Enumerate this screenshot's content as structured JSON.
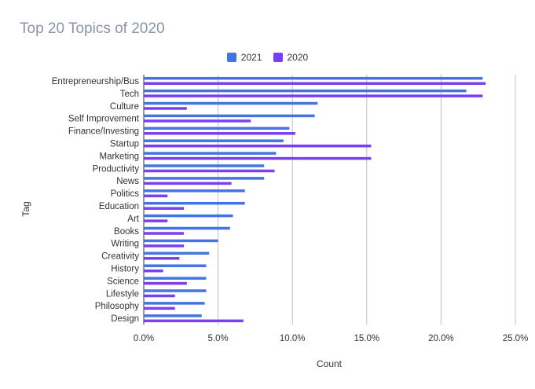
{
  "chart_data": {
    "type": "bar",
    "orientation": "horizontal",
    "title": "Top 20 Topics of 2020",
    "xlabel": "Count",
    "ylabel": "Tag",
    "xlim": [
      0,
      0.26
    ],
    "x_ticks": [
      "0.0%",
      "5.0%",
      "10.0%",
      "15.0%",
      "20.0%",
      "25.0%"
    ],
    "x_tick_values": [
      0,
      0.05,
      0.1,
      0.15,
      0.2,
      0.25
    ],
    "grid": true,
    "legend_position": "top",
    "categories": [
      "Entrepreneurship/Bus",
      "Tech",
      "Culture",
      "Self Improvement",
      "Finance/Investing",
      "Startup",
      "Marketing",
      "Productivity",
      "News",
      "Politics",
      "Education",
      "Art",
      "Books",
      "Writing",
      "Creativity",
      "History",
      "Science",
      "Lifestyle",
      "Philosophy",
      "Design"
    ],
    "series": [
      {
        "name": "2021",
        "color": "#4374e0",
        "values": [
          0.228,
          0.217,
          0.117,
          0.115,
          0.098,
          0.094,
          0.089,
          0.081,
          0.081,
          0.068,
          0.068,
          0.06,
          0.058,
          0.05,
          0.044,
          0.042,
          0.042,
          0.042,
          0.041,
          0.039
        ]
      },
      {
        "name": "2020",
        "color": "#7b3ff2",
        "values": [
          0.23,
          0.228,
          0.029,
          0.072,
          0.102,
          0.153,
          0.153,
          0.088,
          0.059,
          0.016,
          0.027,
          0.016,
          0.027,
          0.027,
          0.024,
          0.013,
          0.029,
          0.021,
          0.021,
          0.067
        ]
      }
    ]
  }
}
